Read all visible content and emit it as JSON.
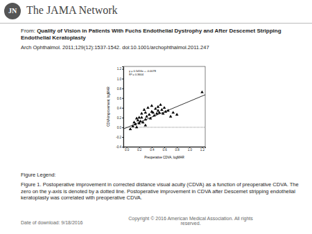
{
  "header": {
    "logo_mark": "JN",
    "brand": "The JAMA Network"
  },
  "source": {
    "prefix": "From:",
    "title": "Quality of Vision in Patients With Fuchs Endothelial Dystrophy and After Descemet Stripping Endothelial Keratoplasty",
    "citation": "Arch Ophthalmol. 2011;129(12):1537-1542. doi:10.1001/archophthalmol.2011.247"
  },
  "chart_data": {
    "type": "scatter",
    "marker": "triangle",
    "color": "#000000",
    "x_label": "Preoperative CDVA, logMAR",
    "y_label": "CDVA improvement, logMAR",
    "x": [
      0.06,
      0.1,
      0.12,
      0.14,
      0.16,
      0.18,
      0.2,
      0.2,
      0.22,
      0.24,
      0.26,
      0.28,
      0.3,
      0.3,
      0.32,
      0.34,
      0.36,
      0.38,
      0.4,
      0.4,
      0.42,
      0.44,
      0.46,
      0.48,
      0.5,
      0.5,
      0.52,
      0.54,
      0.56,
      0.58,
      0.6,
      0.62,
      0.66,
      0.7,
      0.74,
      0.8,
      0.3,
      0.24,
      0.16,
      1.2
    ],
    "values": [
      -0.04,
      0.02,
      0.1,
      0.06,
      0.18,
      0.14,
      0.2,
      0.08,
      0.12,
      0.28,
      0.1,
      0.36,
      0.16,
      0.3,
      0.22,
      0.4,
      0.26,
      0.18,
      0.32,
      0.44,
      0.3,
      0.24,
      0.38,
      0.28,
      0.42,
      0.34,
      0.3,
      0.46,
      0.36,
      0.28,
      0.4,
      0.32,
      0.34,
      0.22,
      0.3,
      0.26,
      0.04,
      0.2,
      0.0,
      0.72
    ],
    "fit": {
      "slope": 0.5416,
      "intercept": -0.0078
    },
    "zero_line": 0,
    "annotations": [
      "y = 0.5416x + -0.0078",
      "R² = 0.3604"
    ],
    "xlim": [
      -0.05,
      1.25
    ],
    "xticks": [
      {
        "value": 0,
        "label": "0.0"
      },
      0.2,
      0.4,
      0.6,
      0.8,
      {
        "value": 1,
        "label": "1.0"
      },
      1.2
    ],
    "ylim": [
      -0.4,
      1.25
    ],
    "yticks": [
      -0.4,
      -0.2,
      {
        "value": 0,
        "label": "0.0"
      },
      0.2,
      0.4,
      0.6,
      0.8,
      {
        "value": 1,
        "label": "1.0"
      },
      1.2
    ]
  },
  "figure_legend": {
    "heading": "Figure Legend:",
    "text": "Figure 1. Postoperative improvement in corrected distance visual acuity (CDVA) as a function of preoperative CDVA. The zero on the y-axis is denoted by a dotted line. Postoperative improvement in CDVA after Descemet stripping endothelial keratoplasty was correlated with preoperative CDVA."
  },
  "footer": {
    "date": "Date of download: 9/18/2016",
    "copyright": "Copyright © 2016 American Medical Association. All rights reserved."
  }
}
